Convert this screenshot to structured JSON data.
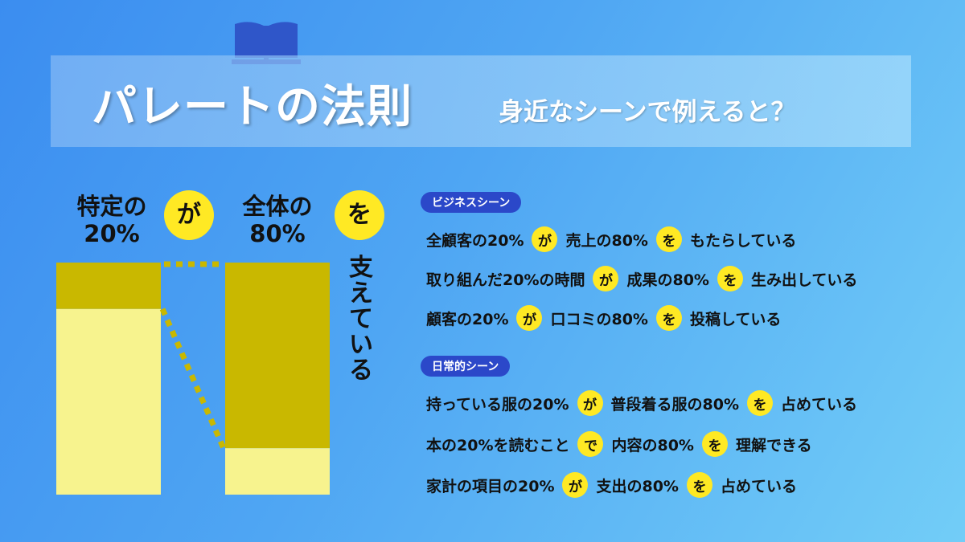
{
  "colors": {
    "background_start": "#3b8df0",
    "background_end": "#72cdf7",
    "bar_top": "#c9b800",
    "bar_bottom": "#f7f38e",
    "accent_yellow": "#ffe924",
    "tag_blue": "#2b48c9",
    "book_blue": "#2f56c9"
  },
  "header": {
    "icon": "book-icon",
    "title": "パレートの法則",
    "subtitle": "身近なシーンで例えると？"
  },
  "diagram": {
    "left_label": [
      "特定の",
      "20%"
    ],
    "left_particle": "が",
    "right_label": [
      "全体の",
      "80%"
    ],
    "right_particle": "を",
    "vertical_text": [
      "支",
      "え",
      "て",
      "い",
      "る"
    ],
    "left_bar": {
      "highlighted_fraction": 0.2
    },
    "right_bar": {
      "highlighted_fraction": 0.8
    }
  },
  "sections": [
    {
      "tag": "ビジネスシーン",
      "rows": [
        {
          "parts": [
            "全顧客の20%",
            "が",
            "売上の80%",
            "を",
            "もたらしている"
          ]
        },
        {
          "parts": [
            "取り組んだ20%の時間",
            "が",
            "成果の80%",
            "を",
            "生み出している"
          ]
        },
        {
          "parts": [
            "顧客の20%",
            "が",
            "口コミの80%",
            "を",
            "投稿している"
          ]
        }
      ]
    },
    {
      "tag": "日常的シーン",
      "rows": [
        {
          "parts": [
            "持っている服の20%",
            "が",
            "普段着る服の80%",
            "を",
            "占めている"
          ]
        },
        {
          "parts": [
            "本の20%を読むこと",
            "で",
            "内容の80%",
            "を",
            "理解できる"
          ]
        },
        {
          "parts": [
            "家計の項目の20%",
            "が",
            "支出の80%",
            "を",
            "占めている"
          ]
        }
      ]
    }
  ]
}
